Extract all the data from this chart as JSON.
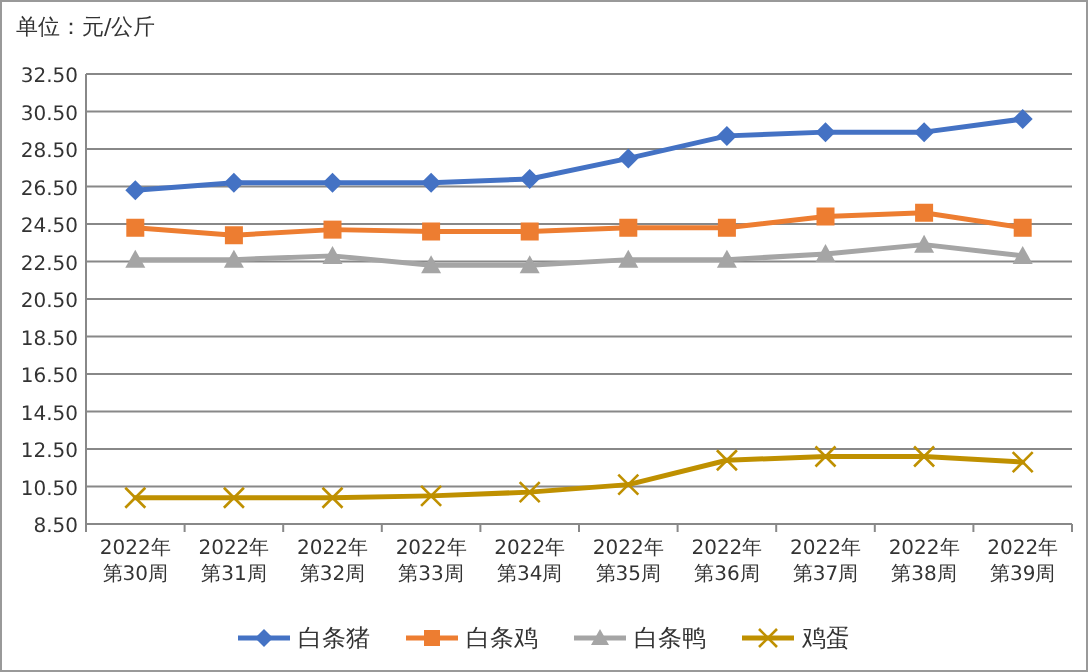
{
  "chart_data": {
    "type": "line",
    "ylabel": "单位：元/公斤",
    "categories": [
      "2022年第30周",
      "2022年第31周",
      "2022年第32周",
      "2022年第33周",
      "2022年第34周",
      "2022年第35周",
      "2022年第36周",
      "2022年第37周",
      "2022年第38周",
      "2022年第39周"
    ],
    "series": [
      {
        "name": "白条猪",
        "color": "#4472c4",
        "marker": "diamond",
        "values": [
          26.3,
          26.7,
          26.7,
          26.7,
          26.9,
          28.0,
          29.2,
          29.4,
          29.4,
          30.1
        ]
      },
      {
        "name": "白条鸡",
        "color": "#ed7d31",
        "marker": "square",
        "values": [
          24.3,
          23.9,
          24.2,
          24.1,
          24.1,
          24.3,
          24.3,
          24.9,
          25.1,
          24.3
        ]
      },
      {
        "name": "白条鸭",
        "color": "#a5a5a5",
        "marker": "triangle",
        "values": [
          22.6,
          22.6,
          22.8,
          22.3,
          22.3,
          22.6,
          22.6,
          22.9,
          23.4,
          22.8
        ]
      },
      {
        "name": "鸡蛋",
        "color": "#bf9000",
        "marker": "cross",
        "values": [
          9.9,
          9.9,
          9.9,
          10.0,
          10.2,
          10.6,
          11.9,
          12.1,
          12.1,
          11.8
        ]
      }
    ],
    "ylim": [
      8.5,
      32.5
    ],
    "yticks": [
      {
        "value": 8.5,
        "label": "8.50"
      },
      {
        "value": 10.5,
        "label": "10.50"
      },
      {
        "value": 12.5,
        "label": "12.50"
      },
      {
        "value": 14.5,
        "label": "14.50"
      },
      {
        "value": 16.5,
        "label": "16.50"
      },
      {
        "value": 18.5,
        "label": "18.50"
      },
      {
        "value": 20.5,
        "label": "20.50"
      },
      {
        "value": 22.5,
        "label": "22.50"
      },
      {
        "value": 24.5,
        "label": "24.50"
      },
      {
        "value": 26.5,
        "label": "26.50"
      },
      {
        "value": 28.5,
        "label": "28.50"
      },
      {
        "value": 30.5,
        "label": "30.50"
      },
      {
        "value": 32.5,
        "label": "32.50"
      }
    ],
    "grid": "y",
    "legend": "bottom"
  }
}
